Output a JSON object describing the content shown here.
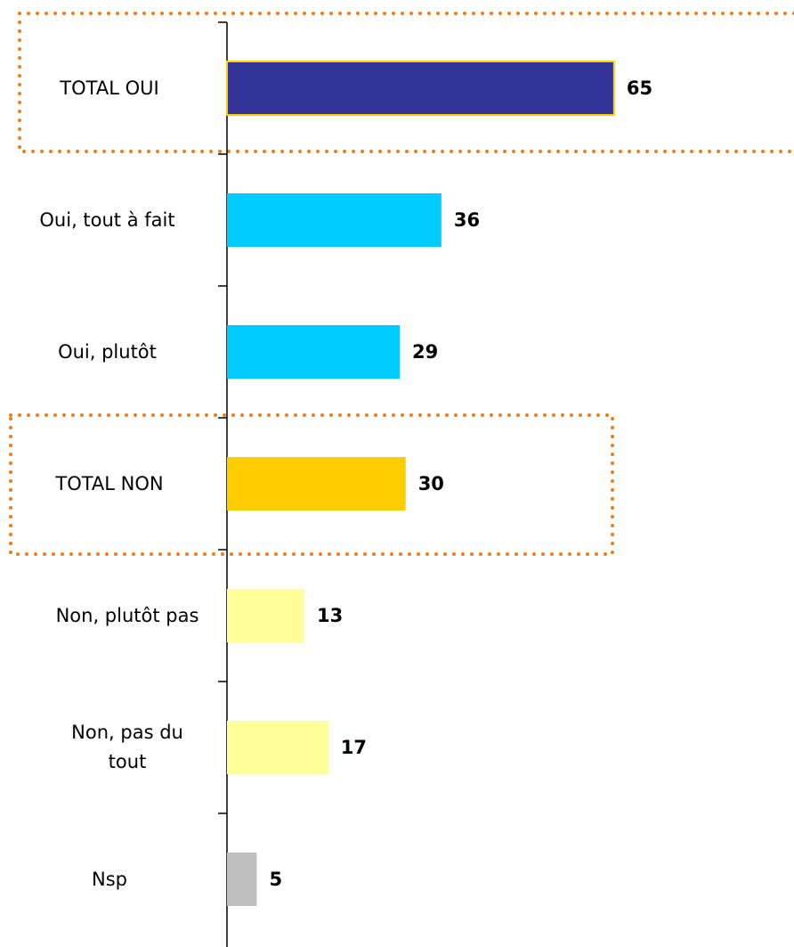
{
  "chart_data": {
    "type": "hbar",
    "categories": [
      "TOTAL OUI",
      "Oui, tout à fait",
      "Oui, plutôt",
      "TOTAL NON",
      "Non, plutôt pas",
      "Non, pas du tout",
      "Nsp"
    ],
    "values": [
      65,
      36,
      29,
      30,
      13,
      17,
      5
    ],
    "colors": [
      "#333399",
      "#00ccff",
      "#00ccff",
      "#ffcc00",
      "#ffff99",
      "#ffff99",
      "#c0c0c0"
    ]
  }
}
